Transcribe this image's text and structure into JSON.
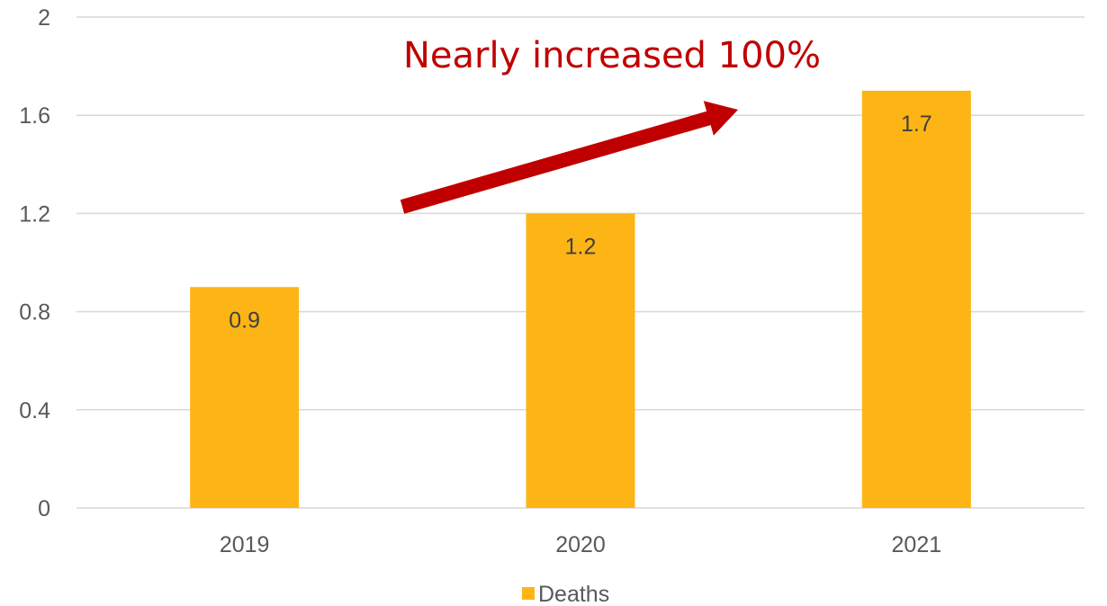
{
  "chart_data": {
    "type": "bar",
    "categories": [
      "2019",
      "2020",
      "2021"
    ],
    "series": [
      {
        "name": "Deaths",
        "values": [
          0.9,
          1.2,
          1.7
        ],
        "color": "#fdb515"
      }
    ],
    "title": "",
    "xlabel": "",
    "ylabel": "",
    "ylim": [
      0,
      2
    ],
    "yticks": [
      "0",
      "0.4",
      "0.8",
      "1.2",
      "1.6",
      "2"
    ],
    "data_labels": [
      "0.9",
      "1.2",
      "1.7"
    ],
    "grid": true,
    "legend": {
      "position": "bottom",
      "entries": [
        "Deaths"
      ]
    },
    "annotation": {
      "text": "Nearly increased 100%",
      "color": "#c00000",
      "arrow": {
        "from": {
          "x": "2019-2020 gap",
          "y": 1.2
        },
        "to": {
          "x": "2020-2021 gap",
          "y": 1.6
        }
      }
    }
  }
}
